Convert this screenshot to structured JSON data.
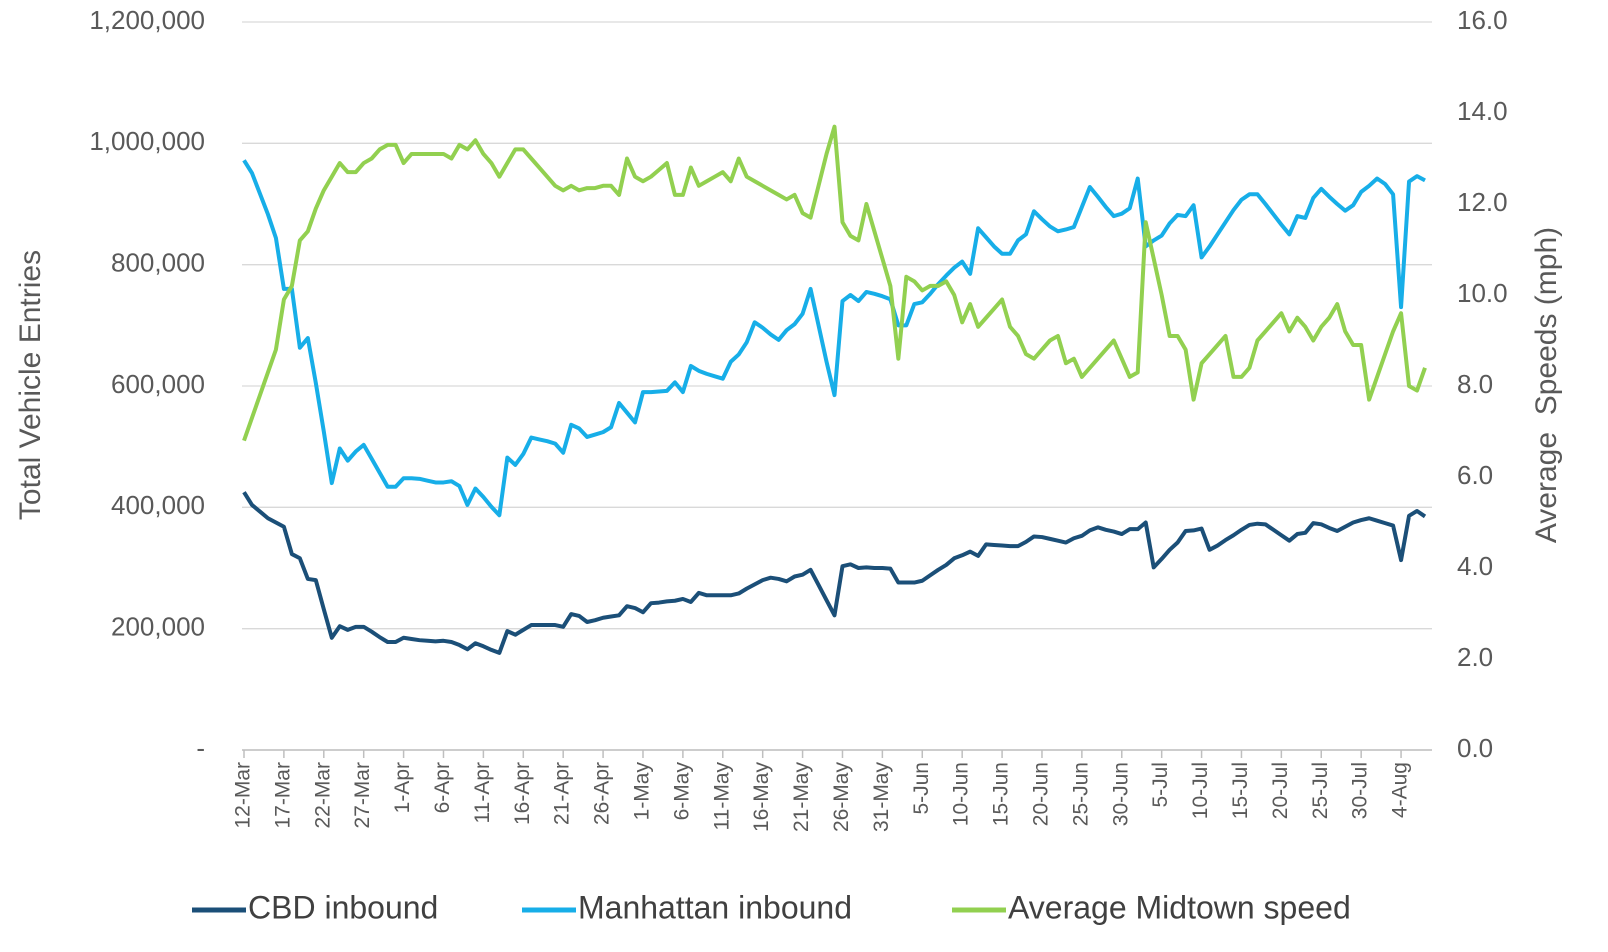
{
  "chart_data": {
    "type": "line",
    "y_label": "Total Vehicle Entries",
    "y2_label": "Average  Speeds (mph)",
    "legend": "bottom",
    "grid": true,
    "ylim": [
      0,
      1200000
    ],
    "yticks": [
      {
        "value": 0,
        "label": "-"
      },
      {
        "value": 200000,
        "label": "200,000"
      },
      {
        "value": 400000,
        "label": "400,000"
      },
      {
        "value": 600000,
        "label": "600,000"
      },
      {
        "value": 800000,
        "label": "800,000"
      },
      {
        "value": 1000000,
        "label": "1,000,000"
      },
      {
        "value": 1200000,
        "label": "1,200,000"
      }
    ],
    "y2lim": [
      0,
      16
    ],
    "y2ticks": [
      {
        "value": 0,
        "label": "0.0"
      },
      {
        "value": 2,
        "label": "2.0"
      },
      {
        "value": 4,
        "label": "4.0"
      },
      {
        "value": 6,
        "label": "6.0"
      },
      {
        "value": 8,
        "label": "8.0"
      },
      {
        "value": 10,
        "label": "10.0"
      },
      {
        "value": 12,
        "label": "12.0"
      },
      {
        "value": 14,
        "label": "14.0"
      },
      {
        "value": 16,
        "label": "16.0"
      }
    ],
    "categories": [
      "12-Mar",
      null,
      null,
      null,
      null,
      "17-Mar",
      null,
      null,
      null,
      null,
      "22-Mar",
      null,
      null,
      null,
      null,
      "27-Mar",
      null,
      null,
      null,
      null,
      "1-Apr",
      null,
      null,
      null,
      null,
      "6-Apr",
      null,
      null,
      null,
      null,
      "11-Apr",
      null,
      null,
      null,
      null,
      "16-Apr",
      null,
      null,
      null,
      null,
      "21-Apr",
      null,
      null,
      null,
      null,
      "26-Apr",
      null,
      null,
      null,
      null,
      "1-May",
      null,
      null,
      null,
      null,
      "6-May",
      null,
      null,
      null,
      null,
      "11-May",
      null,
      null,
      null,
      null,
      "16-May",
      null,
      null,
      null,
      null,
      "21-May",
      null,
      null,
      null,
      null,
      "26-May",
      null,
      null,
      null,
      null,
      "31-May",
      null,
      null,
      null,
      null,
      "5-Jun",
      null,
      null,
      null,
      null,
      "10-Jun",
      null,
      null,
      null,
      null,
      "15-Jun",
      null,
      null,
      null,
      null,
      "20-Jun",
      null,
      null,
      null,
      null,
      "25-Jun",
      null,
      null,
      null,
      null,
      "30-Jun",
      null,
      null,
      null,
      null,
      "5-Jul",
      null,
      null,
      null,
      null,
      "10-Jul",
      null,
      null,
      null,
      null,
      "15-Jul",
      null,
      null,
      null,
      null,
      "20-Jul",
      null,
      null,
      null,
      null,
      "25-Jul",
      null,
      null,
      null,
      null,
      "30-Jul",
      null,
      null,
      null,
      null,
      "4-Aug",
      null,
      null,
      null
    ],
    "series": [
      {
        "name": "CBD inbound",
        "color": "#1b4f78",
        "axis": "y",
        "values": [
          425000,
          404000,
          393000,
          382000,
          375000,
          368000,
          323000,
          316000,
          282000,
          280000,
          232000,
          185000,
          204000,
          198000,
          203000,
          203000,
          195000,
          186000,
          178000,
          178000,
          185000,
          183000,
          181000,
          180000,
          179000,
          180000,
          178000,
          173000,
          166000,
          176000,
          171000,
          165000,
          160000,
          196000,
          190000,
          198000,
          206000,
          206000,
          206000,
          206000,
          203000,
          224000,
          221000,
          211000,
          214000,
          218000,
          220000,
          222000,
          237000,
          234000,
          227000,
          242000,
          243000,
          245000,
          246000,
          249000,
          244000,
          259000,
          255000,
          255000,
          255000,
          255000,
          258000,
          266000,
          273000,
          280000,
          284000,
          282000,
          278000,
          286000,
          289000,
          297000,
          272000,
          247000,
          222000,
          303000,
          306000,
          300000,
          301000,
          300000,
          300000,
          299000,
          276000,
          276000,
          276000,
          279000,
          288000,
          297000,
          305000,
          316000,
          321000,
          327000,
          320000,
          339000,
          338000,
          337000,
          336000,
          336000,
          343000,
          352000,
          351000,
          348000,
          345000,
          342000,
          349000,
          353000,
          362000,
          367000,
          363000,
          360000,
          356000,
          364000,
          364000,
          375000,
          301000,
          315000,
          330000,
          342000,
          361000,
          362000,
          365000,
          330000,
          337000,
          346000,
          354000,
          363000,
          371000,
          373000,
          372000,
          363000,
          354000,
          345000,
          356000,
          358000,
          374000,
          372000,
          366000,
          361000,
          368000,
          375000,
          379000,
          382000,
          378000,
          374000,
          370000,
          313000,
          386000,
          394000,
          385000
        ]
      },
      {
        "name": "Manhattan inbound",
        "color": "#17aee8",
        "axis": "y",
        "values": [
          972000,
          951000,
          917000,
          883000,
          844000,
          760000,
          760000,
          663000,
          679000,
          605000,
          525000,
          440000,
          497000,
          477000,
          492000,
          503000,
          480000,
          457000,
          434000,
          434000,
          448000,
          448000,
          447000,
          444000,
          441000,
          441000,
          443000,
          435000,
          404000,
          431000,
          417000,
          401000,
          387000,
          482000,
          470000,
          488000,
          515000,
          512000,
          509000,
          505000,
          490000,
          536000,
          530000,
          516000,
          520000,
          524000,
          532000,
          572000,
          556000,
          540000,
          590000,
          590000,
          591000,
          592000,
          606000,
          590000,
          633000,
          625000,
          620000,
          616000,
          612000,
          640000,
          652000,
          672000,
          705000,
          696000,
          685000,
          676000,
          692000,
          702000,
          719000,
          760000,
          700000,
          640000,
          585000,
          740000,
          750000,
          740000,
          755000,
          752000,
          748000,
          743000,
          700000,
          700000,
          735000,
          738000,
          752000,
          768000,
          782000,
          795000,
          805000,
          785000,
          860000,
          845000,
          830000,
          818000,
          818000,
          840000,
          850000,
          888000,
          875000,
          863000,
          855000,
          858000,
          862000,
          895000,
          928000,
          912000,
          895000,
          880000,
          884000,
          893000,
          942000,
          830000,
          840000,
          848000,
          868000,
          882000,
          880000,
          898000,
          812000,
          830000,
          850000,
          870000,
          890000,
          907000,
          916000,
          916000,
          900000,
          883000,
          866000,
          850000,
          880000,
          877000,
          910000,
          925000,
          912000,
          900000,
          889000,
          898000,
          920000,
          930000,
          942000,
          933000,
          916000,
          730000,
          937000,
          946000,
          939000
        ]
      },
      {
        "name": "Average Midtown speed",
        "color": "#92d050",
        "axis": "y2",
        "values": [
          6.8,
          7.3,
          7.8,
          8.3,
          8.8,
          9.9,
          10.2,
          11.2,
          11.4,
          11.9,
          12.3,
          12.6,
          12.9,
          12.7,
          12.7,
          12.9,
          13.0,
          13.2,
          13.3,
          13.3,
          12.9,
          13.1,
          13.1,
          13.1,
          13.1,
          13.1,
          13.0,
          13.3,
          13.2,
          13.4,
          13.1,
          12.9,
          12.6,
          12.9,
          13.2,
          13.2,
          13.0,
          12.8,
          12.6,
          12.4,
          12.3,
          12.4,
          12.3,
          12.35,
          12.35,
          12.4,
          12.4,
          12.2,
          13.0,
          12.6,
          12.5,
          12.6,
          12.75,
          12.9,
          12.2,
          12.2,
          12.8,
          12.4,
          12.5,
          12.6,
          12.7,
          12.5,
          13.0,
          12.6,
          12.5,
          12.4,
          12.3,
          12.2,
          12.1,
          12.2,
          11.8,
          11.7,
          12.4,
          13.1,
          13.7,
          11.6,
          11.3,
          11.2,
          12.0,
          11.4,
          10.8,
          10.2,
          8.6,
          10.4,
          10.3,
          10.1,
          10.2,
          10.2,
          10.3,
          10.0,
          9.4,
          9.8,
          9.3,
          9.5,
          9.7,
          9.9,
          9.3,
          9.1,
          8.7,
          8.6,
          8.8,
          9.0,
          9.1,
          8.5,
          8.6,
          8.2,
          8.4,
          8.6,
          8.8,
          9.0,
          8.6,
          8.2,
          8.3,
          11.6,
          10.8,
          10.0,
          9.1,
          9.1,
          8.8,
          7.7,
          8.5,
          8.7,
          8.9,
          9.1,
          8.2,
          8.2,
          8.4,
          9.0,
          9.2,
          9.4,
          9.6,
          9.2,
          9.5,
          9.3,
          9.0,
          9.3,
          9.5,
          9.8,
          9.2,
          8.9,
          8.9,
          7.7,
          8.2,
          8.7,
          9.2,
          9.6,
          8.0,
          7.9,
          8.4
        ]
      }
    ]
  }
}
